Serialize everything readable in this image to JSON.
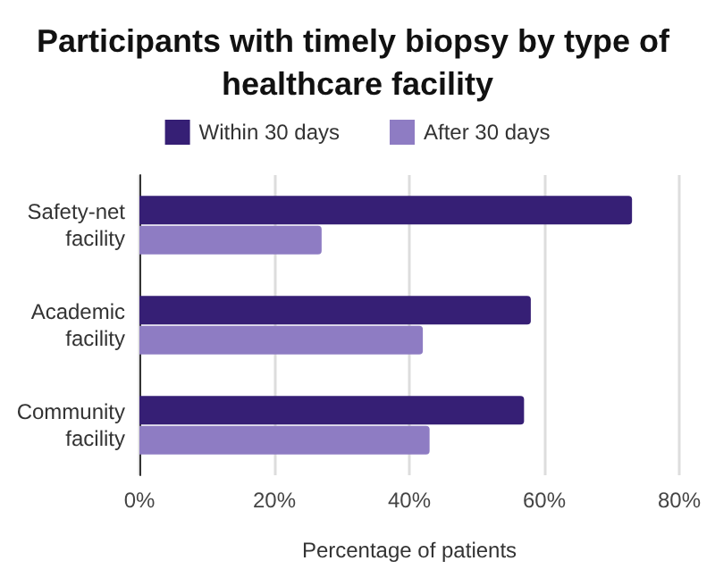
{
  "chart_data": {
    "type": "bar",
    "orientation": "horizontal",
    "title": "Participants with timely biopsy by type of healthcare facility",
    "xlabel": "Percentage of patients",
    "categories": [
      "Safety-net\nfacility",
      "Academic\nfacility",
      "Community\nfacility"
    ],
    "series": [
      {
        "name": "Within 30 days",
        "color": "#361f75",
        "values": [
          73,
          58,
          57
        ]
      },
      {
        "name": "After 30 days",
        "color": "#8e7cc3",
        "values": [
          27,
          42,
          43
        ]
      }
    ],
    "xlim": [
      0,
      80
    ],
    "xticks": [
      {
        "value": 0,
        "label": "0%"
      },
      {
        "value": 20,
        "label": "20%"
      },
      {
        "value": 40,
        "label": "40%"
      },
      {
        "value": 60,
        "label": "60%"
      },
      {
        "value": 80,
        "label": "80%"
      }
    ],
    "grid": "x",
    "legend": "top"
  }
}
